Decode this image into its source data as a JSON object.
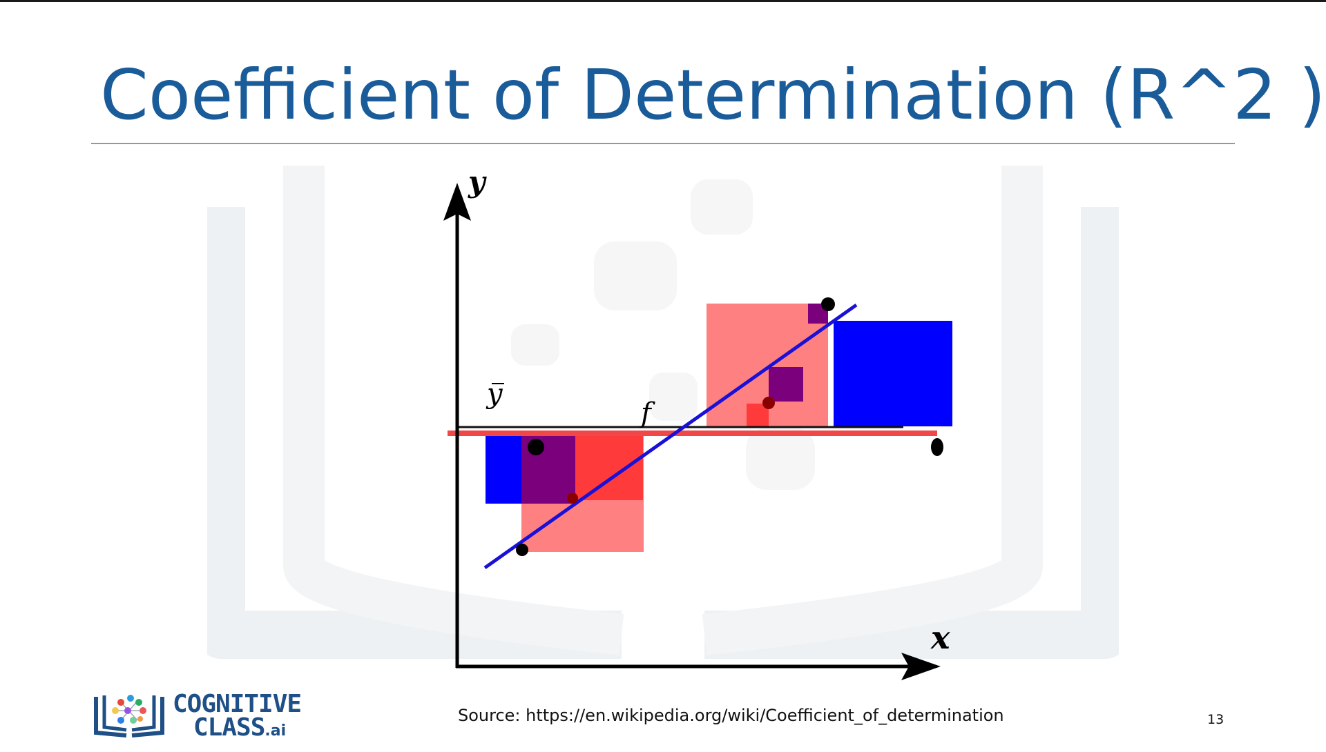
{
  "slide": {
    "title": "Coefficient of Determination (R^2 )",
    "source": "Source: https://en.wikipedia.org/wiki/Coefficient_of_determination",
    "page_number": "13"
  },
  "diagram": {
    "y_axis_label": "y",
    "x_axis_label": "x",
    "mean_label": "y",
    "fit_label": "f"
  },
  "logo": {
    "line1": "COGNITIVE",
    "line2": "CLASS",
    "suffix": ".ai"
  },
  "colors": {
    "title": "#1a5b99",
    "residual_square": "#0000ff",
    "total_square": "#ff3333",
    "overlap": "#7b007b",
    "regression_line": "#1a10d6",
    "mean_line": "#f04848"
  }
}
